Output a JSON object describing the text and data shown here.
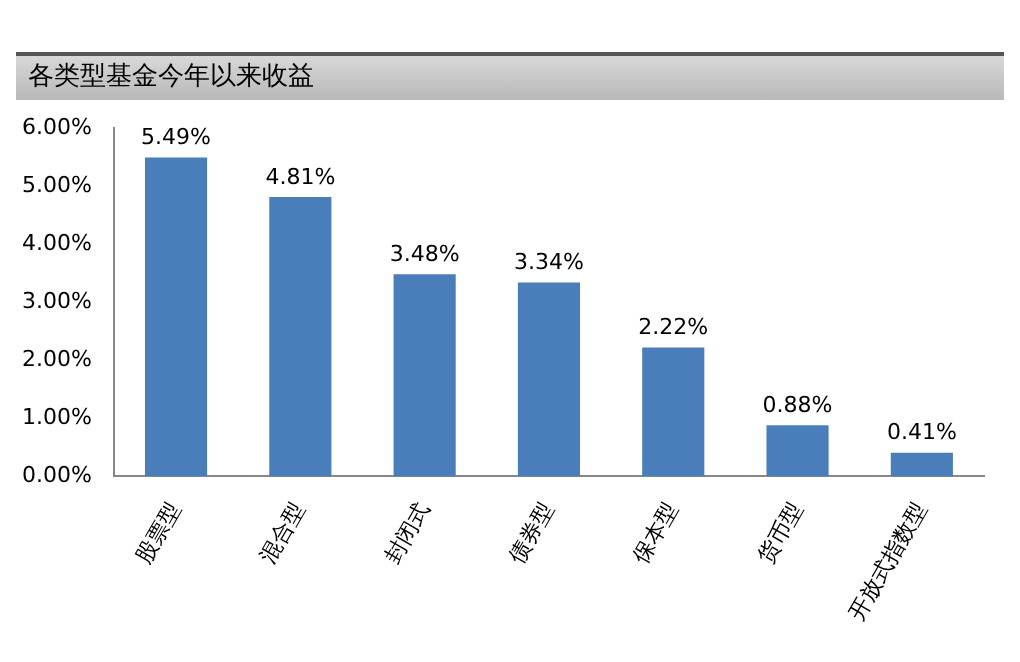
{
  "chart_data": {
    "type": "bar",
    "title": "各类型基金今年以来收益",
    "categories": [
      "股票型",
      "混合型",
      "封闭式",
      "债券型",
      "保本型",
      "货币型",
      "开放式指数型"
    ],
    "values": [
      5.49,
      4.81,
      3.48,
      3.34,
      2.22,
      0.88,
      0.41
    ],
    "value_labels": [
      "5.49%",
      "4.81%",
      "3.48%",
      "3.34%",
      "2.22%",
      "0.88%",
      "0.41%"
    ],
    "color": "#4a7ebb",
    "ylim": [
      0,
      6
    ],
    "yticks": [
      {
        "value": 0,
        "label": "0.00%"
      },
      {
        "value": 1,
        "label": "1.00%"
      },
      {
        "value": 2,
        "label": "2.00%"
      },
      {
        "value": 3,
        "label": "3.00%"
      },
      {
        "value": 4,
        "label": "4.00%"
      },
      {
        "value": 5,
        "label": "5.00%"
      },
      {
        "value": 6,
        "label": "6.00%"
      }
    ],
    "grid": false,
    "legend": false
  }
}
